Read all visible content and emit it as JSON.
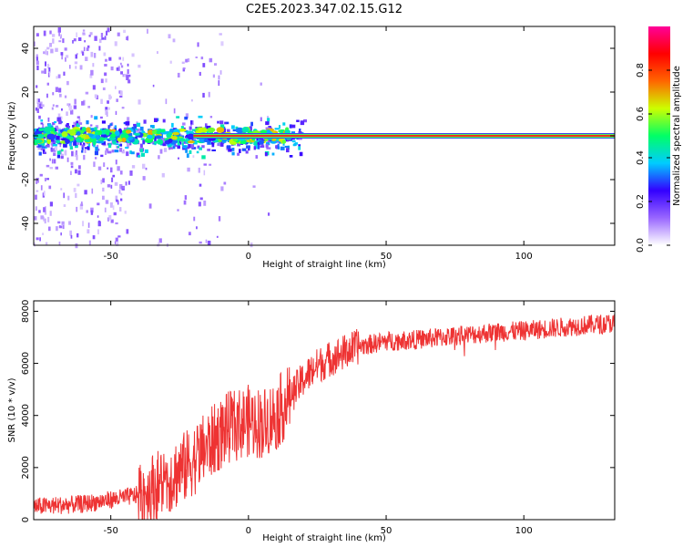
{
  "figure_title": "C2E5.2023.347.02.15.G12",
  "chart_data": [
    {
      "type": "heatmap",
      "xlabel": "Height of straight line (km)",
      "ylabel": "Frequency (Hz)",
      "xlim": [
        -78,
        133
      ],
      "ylim": [
        -50,
        50
      ],
      "x_ticks": [
        -50,
        0,
        50,
        100
      ],
      "y_ticks": [
        -40,
        -20,
        0,
        20,
        40
      ],
      "colorbar": {
        "label": "Normalized spectral amplitude",
        "ticks": [
          0.0,
          0.2,
          0.4,
          0.6,
          0.8
        ],
        "range": [
          0,
          1
        ],
        "colormap": [
          "#ffffff",
          "#9966ff",
          "#3300ff",
          "#00ccff",
          "#00ff66",
          "#ccff00",
          "#ff6600",
          "#ff0000",
          "#ff0099"
        ]
      },
      "ridge": {
        "frequency_hz": 0,
        "noisy_below_km": 15,
        "peak_amplitude": 0.9
      }
    },
    {
      "type": "line",
      "xlabel": "Height of straight line (km)",
      "ylabel": "SNR (10 * v/v)",
      "xlim": [
        -78,
        133
      ],
      "ylim": [
        0,
        8400
      ],
      "x_ticks": [
        -50,
        0,
        50,
        100
      ],
      "y_ticks": [
        0,
        2000,
        4000,
        6000,
        8000
      ],
      "color": "#ee3333",
      "trend": {
        "x": [
          -78,
          -60,
          -45,
          -38,
          -30,
          -22,
          -15,
          -8,
          0,
          5,
          10,
          15,
          20,
          25,
          30,
          40,
          50,
          60,
          70,
          80,
          90,
          100,
          110,
          120,
          133
        ],
        "y": [
          500,
          600,
          850,
          1000,
          1500,
          2100,
          2800,
          3500,
          3800,
          3700,
          4000,
          4700,
          5400,
          5900,
          6200,
          6650,
          6850,
          6900,
          7000,
          7100,
          7200,
          7250,
          7350,
          7450,
          7550
        ]
      }
    }
  ]
}
